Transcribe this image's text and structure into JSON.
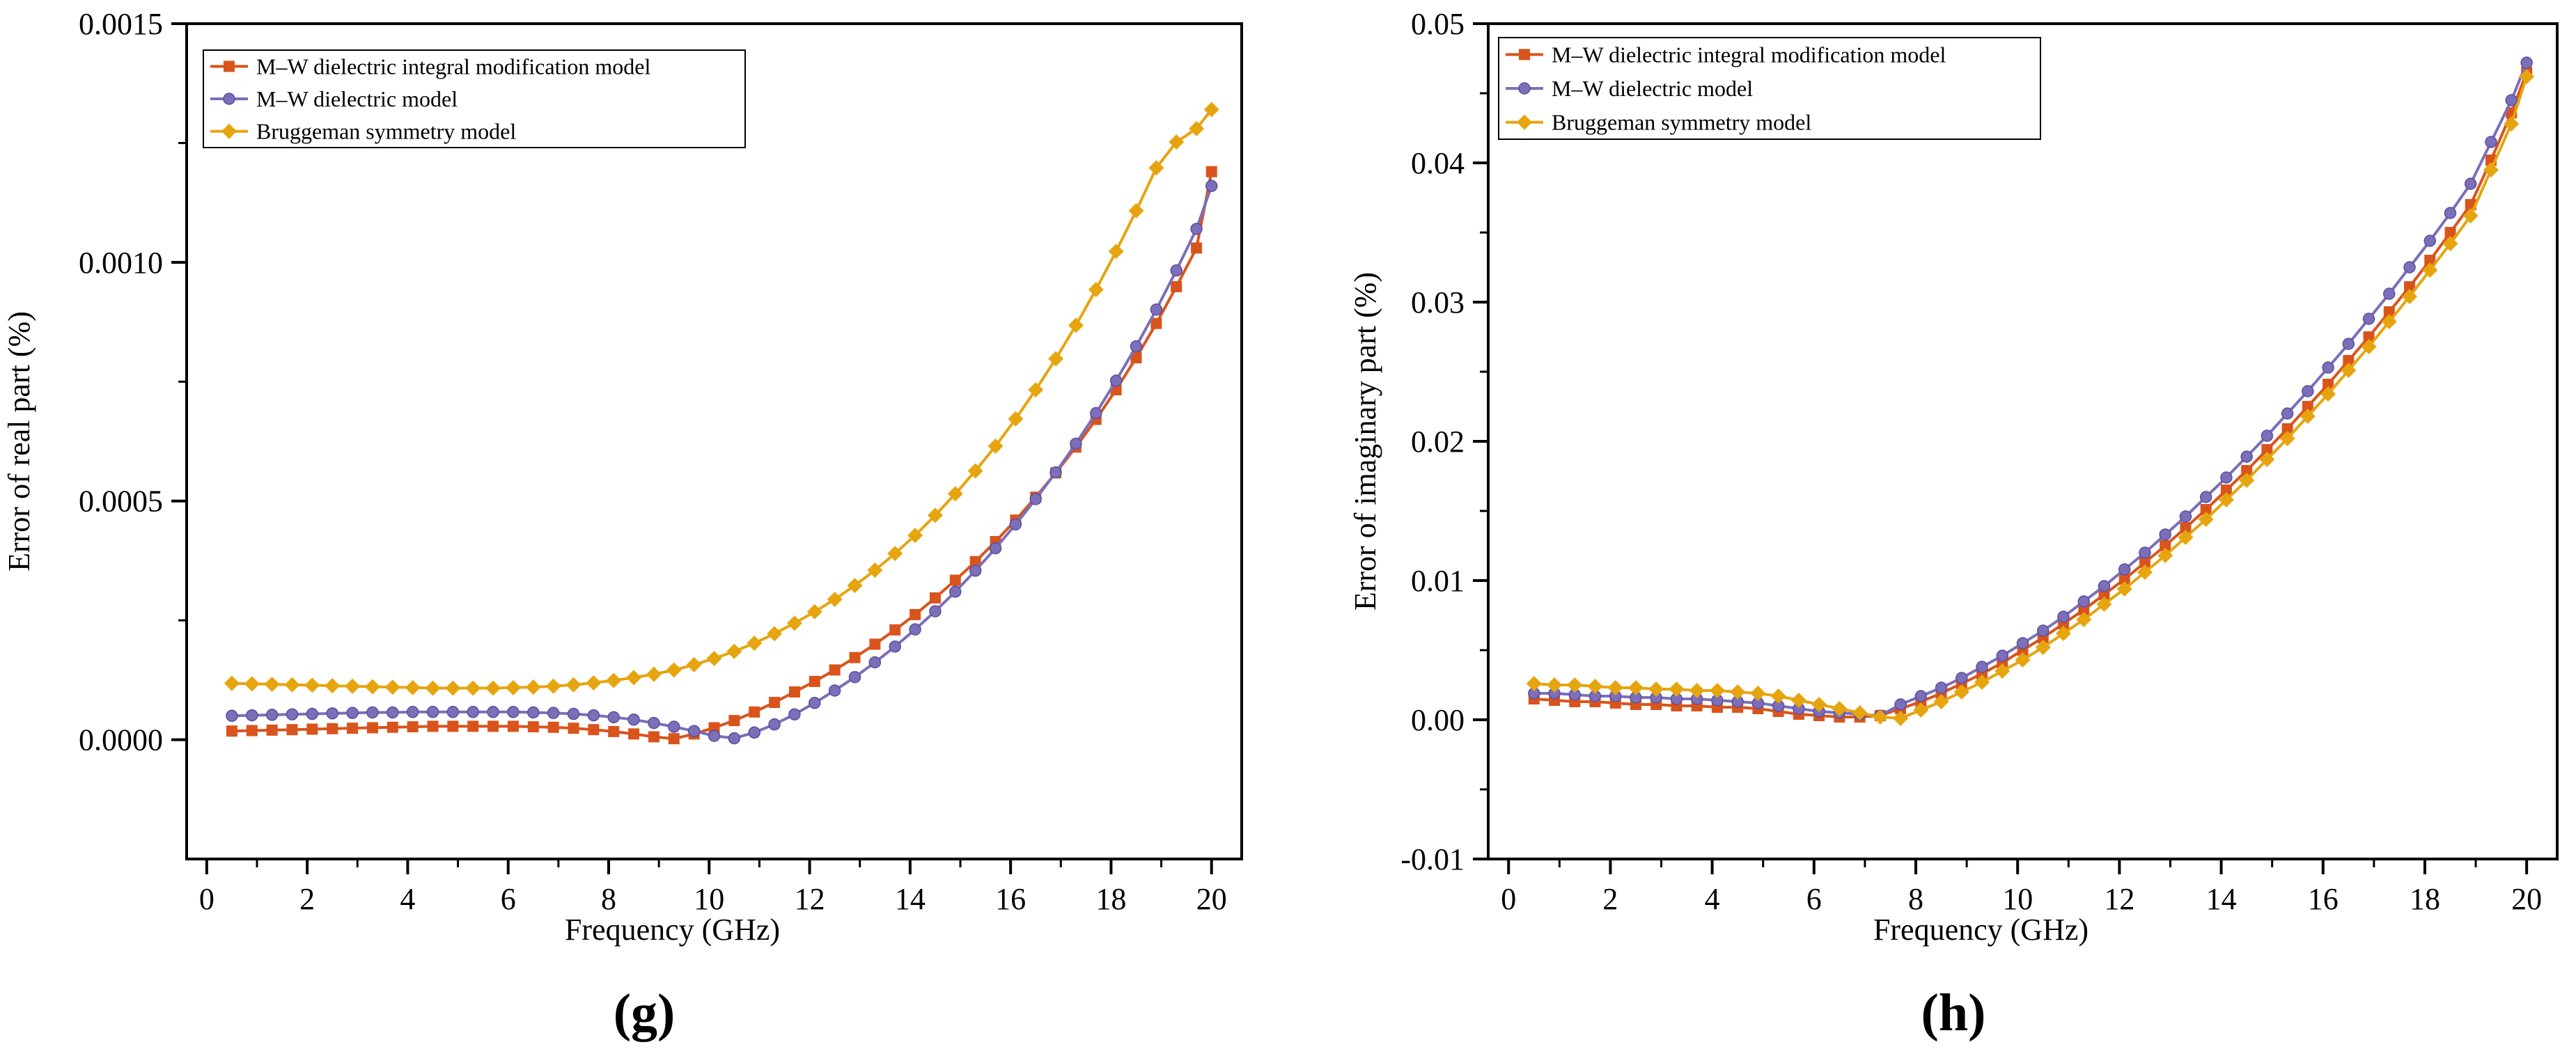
{
  "chart_data": [
    {
      "type": "line",
      "panel_label": "(g)",
      "xlabel": "Frequency (GHz)",
      "ylabel": "Error of real part (%)",
      "xlim": [
        -0.4,
        20.6
      ],
      "ylim": [
        -0.00025,
        0.0015
      ],
      "xticks": [
        0,
        2,
        4,
        6,
        8,
        10,
        12,
        14,
        16,
        18,
        20
      ],
      "xtick_labels": [
        "0",
        "2",
        "4",
        "6",
        "8",
        "10",
        "12",
        "14",
        "16",
        "18",
        "20"
      ],
      "yticks": [
        0,
        0.0005,
        0.001,
        0.0015
      ],
      "ytick_labels": [
        "0.0000",
        "0.0005",
        "0.0010",
        "0.0015"
      ],
      "legend_position": "top-left",
      "x": [
        0.5,
        0.9,
        1.3,
        1.7,
        2.1,
        2.5,
        2.9,
        3.3,
        3.7,
        4.1,
        4.5,
        4.9,
        5.3,
        5.7,
        6.1,
        6.5,
        6.9,
        7.3,
        7.7,
        8.1,
        8.5,
        8.9,
        9.3,
        9.7,
        10.1,
        10.5,
        10.9,
        11.3,
        11.7,
        12.1,
        12.5,
        12.9,
        13.3,
        13.7,
        14.1,
        14.5,
        14.9,
        15.3,
        15.7,
        16.1,
        16.5,
        16.9,
        17.3,
        17.7,
        18.1,
        18.5,
        18.9,
        19.3,
        19.7,
        20.0
      ],
      "series": [
        {
          "name": "M–W dielectric integral modification model",
          "color": "#d9541c",
          "marker": "square",
          "values": [
            1.8e-05,
            1.9e-05,
            2e-05,
            2.1e-05,
            2.2e-05,
            2.3e-05,
            2.4e-05,
            2.5e-05,
            2.6e-05,
            2.7e-05,
            2.8e-05,
            2.8e-05,
            2.8e-05,
            2.8e-05,
            2.8e-05,
            2.7e-05,
            2.6e-05,
            2.4e-05,
            2.1e-05,
            1.7e-05,
            1.2e-05,
            6e-06,
            2e-06,
            1.2e-05,
            2.5e-05,
            4e-05,
            5.8e-05,
            7.8e-05,
            0.0001,
            0.000122,
            0.000146,
            0.000172,
            0.0002,
            0.00023,
            0.000262,
            0.000297,
            0.000334,
            0.000373,
            0.000415,
            0.00046,
            0.000508,
            0.000559,
            0.000613,
            0.000671,
            0.000733,
            0.0008,
            0.000872,
            0.000949,
            0.00103,
            0.00119
          ]
        },
        {
          "name": "M–W dielectric model",
          "color": "#7b6fba",
          "marker": "circle",
          "values": [
            5e-05,
            5.1e-05,
            5.2e-05,
            5.3e-05,
            5.4e-05,
            5.5e-05,
            5.6e-05,
            5.7e-05,
            5.7e-05,
            5.8e-05,
            5.8e-05,
            5.8e-05,
            5.8e-05,
            5.8e-05,
            5.8e-05,
            5.7e-05,
            5.6e-05,
            5.4e-05,
            5.1e-05,
            4.7e-05,
            4.2e-05,
            3.5e-05,
            2.7e-05,
            1.8e-05,
            8e-06,
            3e-06,
            1.5e-05,
            3.2e-05,
            5.3e-05,
            7.7e-05,
            0.000103,
            0.000131,
            0.000162,
            0.000195,
            0.000231,
            0.000269,
            0.00031,
            0.000354,
            0.000401,
            0.000451,
            0.000504,
            0.00056,
            0.00062,
            0.000684,
            0.000752,
            0.000824,
            0.000901,
            0.000983,
            0.00107,
            0.00116
          ]
        },
        {
          "name": "Bruggeman symmetry model",
          "color": "#e6a50f",
          "marker": "diamond",
          "values": [
            0.000118,
            0.000117,
            0.000116,
            0.000115,
            0.000114,
            0.000113,
            0.000112,
            0.000111,
            0.00011,
            0.000109,
            0.000108,
            0.000108,
            0.000108,
            0.000108,
            0.000109,
            0.00011,
            0.000112,
            0.000115,
            0.000119,
            0.000124,
            0.00013,
            0.000137,
            0.000146,
            0.000157,
            0.00017,
            0.000185,
            0.000202,
            0.000222,
            0.000244,
            0.000268,
            0.000294,
            0.000323,
            0.000355,
            0.00039,
            0.000428,
            0.00047,
            0.000515,
            0.000563,
            0.000615,
            0.000672,
            0.000733,
            0.000798,
            0.000868,
            0.000943,
            0.001023,
            0.001108,
            0.001198,
            0.001252,
            0.00128,
            0.00132
          ]
        }
      ]
    },
    {
      "type": "line",
      "panel_label": "(h)",
      "xlabel": "Frequency (GHz)",
      "ylabel": "Error of imaginary part (%)",
      "xlim": [
        -0.4,
        20.6
      ],
      "ylim": [
        -0.01,
        0.05
      ],
      "xticks": [
        0,
        2,
        4,
        6,
        8,
        10,
        12,
        14,
        16,
        18,
        20
      ],
      "xtick_labels": [
        "0",
        "2",
        "4",
        "6",
        "8",
        "10",
        "12",
        "14",
        "16",
        "18",
        "20"
      ],
      "yticks": [
        -0.01,
        0,
        0.01,
        0.02,
        0.03,
        0.04,
        0.05
      ],
      "ytick_labels": [
        "-0.01",
        "0.00",
        "0.01",
        "0.02",
        "0.03",
        "0.04",
        "0.05"
      ],
      "legend_position": "top-left",
      "x": [
        0.5,
        0.9,
        1.3,
        1.7,
        2.1,
        2.5,
        2.9,
        3.3,
        3.7,
        4.1,
        4.5,
        4.9,
        5.3,
        5.7,
        6.1,
        6.5,
        6.9,
        7.3,
        7.7,
        8.1,
        8.5,
        8.9,
        9.3,
        9.7,
        10.1,
        10.5,
        10.9,
        11.3,
        11.7,
        12.1,
        12.5,
        12.9,
        13.3,
        13.7,
        14.1,
        14.5,
        14.9,
        15.3,
        15.7,
        16.1,
        16.5,
        16.9,
        17.3,
        17.7,
        18.1,
        18.5,
        18.9,
        19.3,
        19.7,
        20.0
      ],
      "series": [
        {
          "name": "M–W dielectric integral modification model",
          "color": "#d9541c",
          "marker": "square",
          "values": [
            0.0015,
            0.0014,
            0.0013,
            0.0013,
            0.0012,
            0.0011,
            0.0011,
            0.001,
            0.001,
            0.0009,
            0.0009,
            0.0008,
            0.0006,
            0.0004,
            0.0003,
            0.0002,
            0.0002,
            0.0003,
            0.0008,
            0.0013,
            0.0019,
            0.0026,
            0.0033,
            0.0041,
            0.005,
            0.0059,
            0.0069,
            0.0079,
            0.009,
            0.0101,
            0.0113,
            0.0125,
            0.0138,
            0.0151,
            0.0165,
            0.0179,
            0.0194,
            0.0209,
            0.0225,
            0.0241,
            0.0258,
            0.0275,
            0.0293,
            0.0311,
            0.033,
            0.035,
            0.037,
            0.0402,
            0.0436,
            0.0465
          ]
        },
        {
          "name": "M–W dielectric model",
          "color": "#7b6fba",
          "marker": "circle",
          "values": [
            0.0019,
            0.0019,
            0.0018,
            0.0017,
            0.0017,
            0.0016,
            0.0016,
            0.0015,
            0.0015,
            0.0014,
            0.0013,
            0.0012,
            0.001,
            0.0008,
            0.0006,
            0.0005,
            0.0004,
            0.0003,
            0.0011,
            0.0017,
            0.0023,
            0.003,
            0.0038,
            0.0046,
            0.0055,
            0.0064,
            0.0074,
            0.0085,
            0.0096,
            0.0108,
            0.012,
            0.0133,
            0.0146,
            0.016,
            0.0174,
            0.0189,
            0.0204,
            0.022,
            0.0236,
            0.0253,
            0.027,
            0.0288,
            0.0306,
            0.0325,
            0.0344,
            0.0364,
            0.0385,
            0.0415,
            0.0445,
            0.0472
          ]
        },
        {
          "name": "Bruggeman symmetry model",
          "color": "#e6a50f",
          "marker": "diamond",
          "values": [
            0.0026,
            0.0025,
            0.0025,
            0.0024,
            0.0023,
            0.0023,
            0.0022,
            0.0022,
            0.0021,
            0.0021,
            0.002,
            0.0019,
            0.0017,
            0.0014,
            0.0011,
            0.0008,
            0.0005,
            0.0002,
            0.0001,
            0.0007,
            0.0013,
            0.002,
            0.0027,
            0.0035,
            0.0043,
            0.0052,
            0.0062,
            0.0072,
            0.0083,
            0.0094,
            0.0106,
            0.0118,
            0.0131,
            0.0144,
            0.0158,
            0.0172,
            0.0187,
            0.0202,
            0.0218,
            0.0234,
            0.0251,
            0.0268,
            0.0286,
            0.0304,
            0.0323,
            0.0342,
            0.0362,
            0.0395,
            0.0428,
            0.0462
          ]
        }
      ]
    }
  ]
}
